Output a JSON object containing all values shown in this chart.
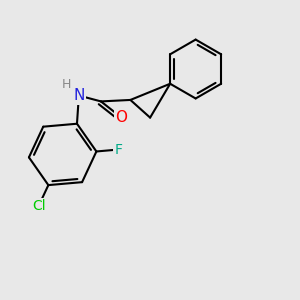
{
  "background_color": "#e8e8e8",
  "bond_color": "#000000",
  "atoms": {
    "N": {
      "color": "#2222dd"
    },
    "O": {
      "color": "#ff0000"
    },
    "F": {
      "color": "#00aa88"
    },
    "Cl": {
      "color": "#00cc00"
    },
    "H": {
      "color": "#888888"
    }
  },
  "figsize": [
    3.0,
    3.0
  ],
  "dpi": 100
}
